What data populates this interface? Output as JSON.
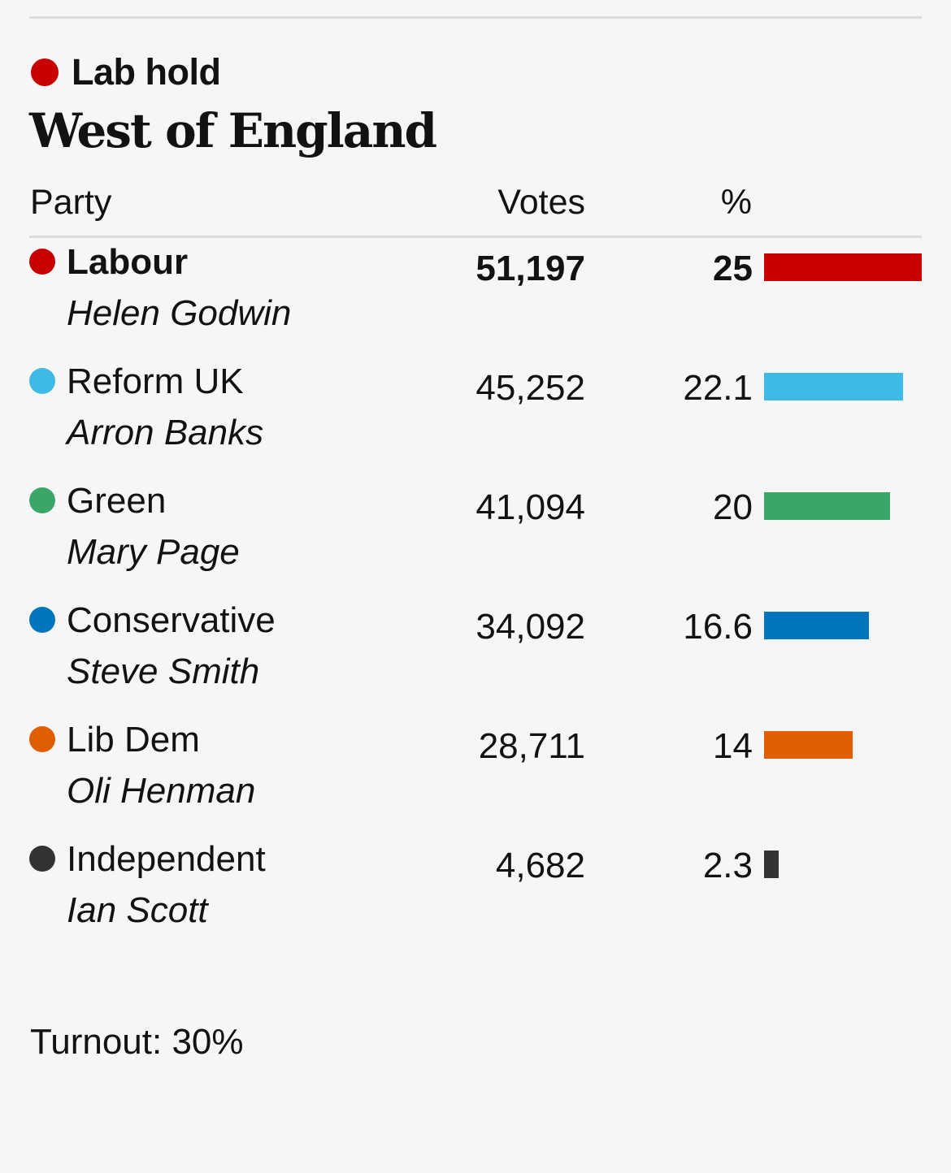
{
  "result": {
    "status": "Lab hold",
    "status_color": "#c70000"
  },
  "region": "West of England",
  "columns": {
    "party": "Party",
    "votes": "Votes",
    "percent": "%"
  },
  "chart_data": {
    "type": "bar",
    "title": "West of England",
    "xlabel": "",
    "ylabel": "%",
    "ylim": [
      0,
      25
    ],
    "categories": [
      "Labour",
      "Reform UK",
      "Green",
      "Conservative",
      "Lib Dem",
      "Independent"
    ],
    "candidates": [
      "Helen Godwin",
      "Arron Banks",
      "Mary Page",
      "Steve Smith",
      "Oli Henman",
      "Ian Scott"
    ],
    "votes": [
      "51,197",
      "45,252",
      "41,094",
      "34,092",
      "28,711",
      "4,682"
    ],
    "percent_labels": [
      "25",
      "22.1",
      "20",
      "16.6",
      "14",
      "2.3"
    ],
    "values": [
      25,
      22.1,
      20,
      16.6,
      14,
      2.3
    ],
    "colors": [
      "#c70000",
      "#3fb9e5",
      "#3ca568",
      "#0075bb",
      "#e05e00",
      "#333333"
    ],
    "winner_index": 0
  },
  "turnout": "Turnout: 30%"
}
